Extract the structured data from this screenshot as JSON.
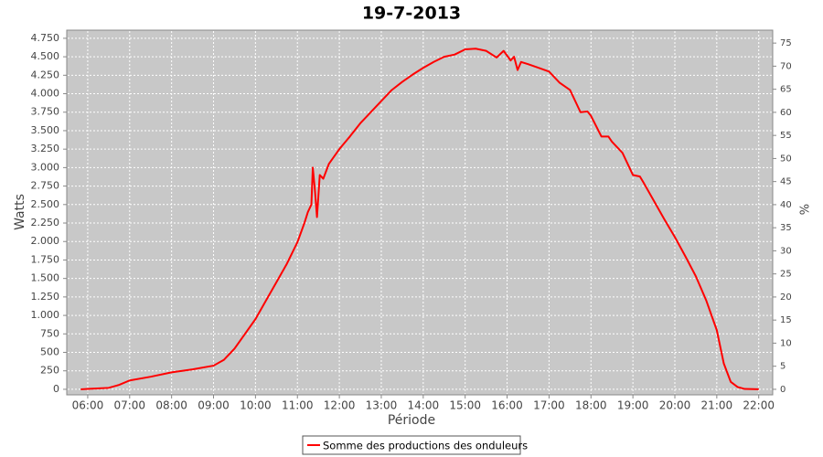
{
  "chart_data": {
    "type": "line",
    "title": "19-7-2013",
    "x_label": "Période",
    "y_label": "Watts",
    "y2_label": "%",
    "x": [
      "05:50",
      "06:00",
      "06:30",
      "06:45",
      "07:00",
      "07:30",
      "08:00",
      "08:30",
      "09:00",
      "09:15",
      "09:30",
      "09:45",
      "10:00",
      "10:15",
      "10:30",
      "10:45",
      "11:00",
      "11:10",
      "11:15",
      "11:20",
      "11:22",
      "11:25",
      "11:28",
      "11:32",
      "11:37",
      "11:45",
      "12:00",
      "12:15",
      "12:30",
      "12:45",
      "13:00",
      "13:15",
      "13:30",
      "13:45",
      "14:00",
      "14:15",
      "14:30",
      "14:45",
      "15:00",
      "15:15",
      "15:30",
      "15:45",
      "15:55",
      "16:05",
      "16:10",
      "16:15",
      "16:20",
      "16:30",
      "16:45",
      "17:00",
      "17:15",
      "17:30",
      "17:45",
      "17:55",
      "18:00",
      "18:15",
      "18:25",
      "18:30",
      "18:45",
      "19:00",
      "19:10",
      "19:15",
      "19:30",
      "19:45",
      "20:00",
      "20:15",
      "20:30",
      "20:45",
      "21:00",
      "21:10",
      "21:20",
      "21:30",
      "21:40",
      "22:00"
    ],
    "series": [
      {
        "name": "Somme des productions des onduleurs",
        "color": "#ff0000",
        "values": [
          0,
          5,
          20,
          60,
          120,
          170,
          230,
          270,
          320,
          400,
          550,
          750,
          950,
          1200,
          1450,
          1700,
          1990,
          2250,
          2400,
          2500,
          3000,
          2700,
          2330,
          2900,
          2850,
          3050,
          3250,
          3420,
          3600,
          3750,
          3900,
          4050,
          4160,
          4260,
          4350,
          4430,
          4500,
          4530,
          4600,
          4610,
          4580,
          4490,
          4580,
          4450,
          4500,
          4320,
          4430,
          4400,
          4350,
          4300,
          4150,
          4050,
          3750,
          3760,
          3700,
          3420,
          3420,
          3350,
          3200,
          2900,
          2880,
          2800,
          2550,
          2300,
          2060,
          1800,
          1530,
          1200,
          800,
          350,
          100,
          30,
          5,
          0
        ]
      }
    ],
    "xlim": [
      "05:30",
      "22:20"
    ],
    "xticks": [
      "06:00",
      "07:00",
      "08:00",
      "09:00",
      "10:00",
      "11:00",
      "12:00",
      "13:00",
      "14:00",
      "15:00",
      "16:00",
      "17:00",
      "18:00",
      "19:00",
      "20:00",
      "21:00",
      "22:00"
    ],
    "ylim": [
      -75,
      4860
    ],
    "yticks": [
      0,
      250,
      500,
      750,
      {
        "value": 1000,
        "label": "1.000"
      },
      {
        "value": 1250,
        "label": "1.250"
      },
      {
        "value": 1500,
        "label": "1.500"
      },
      {
        "value": 1750,
        "label": "1.750"
      },
      {
        "value": 2000,
        "label": "2.000"
      },
      {
        "value": 2250,
        "label": "2.250"
      },
      {
        "value": 2500,
        "label": "2.500"
      },
      {
        "value": 2750,
        "label": "2.750"
      },
      {
        "value": 3000,
        "label": "3.000"
      },
      {
        "value": 3250,
        "label": "3.250"
      },
      {
        "value": 3500,
        "label": "3.500"
      },
      {
        "value": 3750,
        "label": "3.750"
      },
      {
        "value": 4000,
        "label": "4.000"
      },
      {
        "value": 4250,
        "label": "4.250"
      },
      {
        "value": 4500,
        "label": "4.500"
      },
      {
        "value": 4750,
        "label": "4.750"
      }
    ],
    "y2lim": [
      -1.2,
      77.8
    ],
    "y2ticks": [
      0,
      5,
      10,
      15,
      20,
      25,
      30,
      35,
      40,
      45,
      50,
      55,
      60,
      65,
      70,
      75
    ],
    "grid": true
  }
}
